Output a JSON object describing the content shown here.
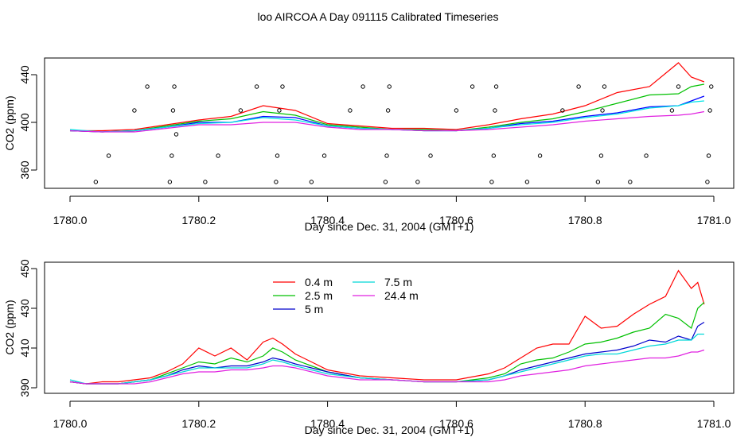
{
  "figure_title": "loo AIRCOA A  Day 091115  Calibrated Timeseries",
  "chart_data": [
    {
      "type": "line",
      "title": "",
      "xlabel": "Day since Dec. 31, 2004 (GMT+1)",
      "ylabel": "CO2 (ppm)",
      "xlim": [
        1780.0,
        1781.0
      ],
      "ylim": [
        350,
        450
      ],
      "x_ticks": [
        1780.0,
        1780.2,
        1780.4,
        1780.6,
        1780.8,
        1781.0
      ],
      "x_tick_labels": [
        "1780.0",
        "1780.2",
        "1780.4",
        "1780.6",
        "1780.8",
        "1781.0"
      ],
      "y_ticks": [
        360,
        400,
        440
      ],
      "y_tick_labels": [
        "360",
        "400",
        "440"
      ],
      "grid": false,
      "legend": false,
      "series": [
        {
          "color": "#ff0000",
          "x": [
            1780.0,
            1780.05,
            1780.1,
            1780.15,
            1780.2,
            1780.25,
            1780.3,
            1780.35,
            1780.4,
            1780.45,
            1780.5,
            1780.55,
            1780.6,
            1780.65,
            1780.7,
            1780.75,
            1780.8,
            1780.85,
            1780.9,
            1780.945,
            1780.965,
            1780.985
          ],
          "values": [
            393,
            393,
            394,
            398,
            402,
            405,
            414,
            410,
            399,
            397,
            395,
            395,
            394,
            398,
            403,
            407,
            414,
            425,
            430,
            450,
            438,
            434
          ]
        },
        {
          "color": "#00c000",
          "x": [
            1780.0,
            1780.05,
            1780.1,
            1780.15,
            1780.2,
            1780.25,
            1780.3,
            1780.35,
            1780.4,
            1780.45,
            1780.5,
            1780.55,
            1780.6,
            1780.65,
            1780.7,
            1780.75,
            1780.8,
            1780.85,
            1780.9,
            1780.945,
            1780.965,
            1780.985
          ],
          "values": [
            393,
            392,
            393,
            397,
            401,
            403,
            409,
            406,
            398,
            396,
            394,
            394,
            393,
            396,
            400,
            403,
            409,
            416,
            423,
            424,
            430,
            432
          ]
        },
        {
          "color": "#0000ff",
          "x": [
            1780.0,
            1780.05,
            1780.1,
            1780.15,
            1780.2,
            1780.25,
            1780.3,
            1780.35,
            1780.4,
            1780.45,
            1780.5,
            1780.55,
            1780.6,
            1780.65,
            1780.7,
            1780.75,
            1780.8,
            1780.85,
            1780.9,
            1780.945,
            1780.965,
            1780.985
          ],
          "values": [
            393,
            392,
            393,
            396,
            400,
            400,
            405,
            404,
            397,
            395,
            394,
            393,
            393,
            395,
            399,
            401,
            405,
            408,
            413,
            414,
            418,
            422
          ]
        },
        {
          "color": "#00e5e5",
          "x": [
            1780.0,
            1780.05,
            1780.1,
            1780.15,
            1780.2,
            1780.25,
            1780.3,
            1780.35,
            1780.4,
            1780.45,
            1780.5,
            1780.55,
            1780.6,
            1780.65,
            1780.7,
            1780.75,
            1780.8,
            1780.85,
            1780.9,
            1780.945,
            1780.965,
            1780.985
          ],
          "values": [
            394,
            392,
            393,
            396,
            399,
            400,
            404,
            402,
            397,
            395,
            394,
            393,
            393,
            395,
            398,
            400,
            404,
            407,
            412,
            414,
            417,
            418
          ]
        },
        {
          "color": "#e020e0",
          "x": [
            1780.0,
            1780.05,
            1780.1,
            1780.15,
            1780.2,
            1780.25,
            1780.3,
            1780.35,
            1780.4,
            1780.45,
            1780.5,
            1780.55,
            1780.6,
            1780.65,
            1780.7,
            1780.75,
            1780.8,
            1780.85,
            1780.9,
            1780.945,
            1780.965,
            1780.985
          ],
          "values": [
            393,
            392,
            392,
            395,
            398,
            398,
            400,
            400,
            396,
            394,
            394,
            393,
            393,
            394,
            396,
            398,
            401,
            403,
            405,
            406,
            407,
            409
          ]
        }
      ],
      "markers": {
        "x": [
          1780.04,
          1780.06,
          1780.1,
          1780.12,
          1780.155,
          1780.158,
          1780.16,
          1780.162,
          1780.165,
          1780.21,
          1780.23,
          1780.265,
          1780.29,
          1780.32,
          1780.322,
          1780.325,
          1780.33,
          1780.375,
          1780.395,
          1780.435,
          1780.455,
          1780.49,
          1780.492,
          1780.494,
          1780.496,
          1780.54,
          1780.56,
          1780.6,
          1780.625,
          1780.655,
          1780.658,
          1780.66,
          1780.662,
          1780.71,
          1780.73,
          1780.765,
          1780.79,
          1780.82,
          1780.825,
          1780.827,
          1780.83,
          1780.87,
          1780.895,
          1780.935,
          1780.945,
          1780.99,
          1780.992,
          1780.994,
          1780.996
        ],
        "values": [
          350,
          372,
          410,
          430,
          350,
          372,
          410,
          430,
          390,
          350,
          372,
          410,
          430,
          350,
          372,
          410,
          430,
          350,
          372,
          410,
          430,
          350,
          372,
          410,
          430,
          350,
          372,
          410,
          430,
          350,
          372,
          410,
          430,
          350,
          372,
          410,
          430,
          350,
          372,
          410,
          430,
          350,
          372,
          410,
          430,
          350,
          372,
          410,
          430
        ]
      }
    },
    {
      "type": "line",
      "title": "",
      "xlabel": "Day since Dec. 31, 2004 (GMT+1)",
      "ylabel": "CO2 (ppm)",
      "xlim": [
        1780.0,
        1781.0
      ],
      "ylim": [
        390,
        450
      ],
      "x_ticks": [
        1780.0,
        1780.2,
        1780.4,
        1780.6,
        1780.8,
        1781.0
      ],
      "x_tick_labels": [
        "1780.0",
        "1780.2",
        "1780.4",
        "1780.6",
        "1780.8",
        "1781.0"
      ],
      "y_ticks": [
        390,
        410,
        430,
        450
      ],
      "y_tick_labels": [
        "390",
        "410",
        "430",
        "450"
      ],
      "grid": false,
      "legend": "top-left",
      "series": [
        {
          "name": "0.4 m",
          "color": "#ff0000",
          "x": [
            1780.0,
            1780.025,
            1780.05,
            1780.075,
            1780.1,
            1780.125,
            1780.15,
            1780.175,
            1780.2,
            1780.225,
            1780.25,
            1780.275,
            1780.3,
            1780.315,
            1780.33,
            1780.35,
            1780.375,
            1780.4,
            1780.45,
            1780.5,
            1780.55,
            1780.6,
            1780.65,
            1780.675,
            1780.7,
            1780.725,
            1780.75,
            1780.775,
            1780.8,
            1780.825,
            1780.85,
            1780.875,
            1780.9,
            1780.925,
            1780.945,
            1780.965,
            1780.975,
            1780.985
          ],
          "values": [
            393,
            392,
            393,
            393,
            394,
            395,
            398,
            402,
            410,
            406,
            410,
            404,
            413,
            415,
            412,
            407,
            403,
            399,
            396,
            395,
            394,
            394,
            397,
            400,
            405,
            410,
            412,
            412,
            426,
            420,
            421,
            427,
            432,
            436,
            449,
            440,
            443,
            432
          ]
        },
        {
          "name": "2.5 m",
          "color": "#00c000",
          "x": [
            1780.0,
            1780.025,
            1780.05,
            1780.075,
            1780.1,
            1780.125,
            1780.15,
            1780.175,
            1780.2,
            1780.225,
            1780.25,
            1780.275,
            1780.3,
            1780.315,
            1780.33,
            1780.35,
            1780.375,
            1780.4,
            1780.45,
            1780.5,
            1780.55,
            1780.6,
            1780.65,
            1780.675,
            1780.7,
            1780.725,
            1780.75,
            1780.775,
            1780.8,
            1780.825,
            1780.85,
            1780.875,
            1780.9,
            1780.925,
            1780.945,
            1780.965,
            1780.975,
            1780.985
          ],
          "values": [
            393,
            392,
            392,
            392,
            393,
            394,
            397,
            400,
            403,
            402,
            405,
            403,
            406,
            410,
            408,
            404,
            401,
            398,
            395,
            394,
            393,
            393,
            395,
            397,
            402,
            404,
            405,
            408,
            412,
            413,
            415,
            418,
            420,
            427,
            425,
            420,
            430,
            433
          ]
        },
        {
          "name": "5 m",
          "color": "#0000cc",
          "x": [
            1780.0,
            1780.025,
            1780.05,
            1780.075,
            1780.1,
            1780.125,
            1780.15,
            1780.175,
            1780.2,
            1780.225,
            1780.25,
            1780.275,
            1780.3,
            1780.315,
            1780.33,
            1780.35,
            1780.375,
            1780.4,
            1780.45,
            1780.5,
            1780.55,
            1780.6,
            1780.65,
            1780.675,
            1780.7,
            1780.725,
            1780.75,
            1780.775,
            1780.8,
            1780.825,
            1780.85,
            1780.875,
            1780.9,
            1780.925,
            1780.945,
            1780.965,
            1780.975,
            1780.985
          ],
          "values": [
            393,
            392,
            392,
            392,
            393,
            394,
            396,
            399,
            401,
            400,
            401,
            401,
            403,
            405,
            404,
            402,
            400,
            398,
            395,
            394,
            393,
            393,
            394,
            396,
            399,
            401,
            403,
            405,
            407,
            408,
            409,
            411,
            414,
            413,
            416,
            414,
            421,
            423
          ]
        },
        {
          "name": "7.5 m",
          "color": "#00d8d8",
          "x": [
            1780.0,
            1780.025,
            1780.05,
            1780.075,
            1780.1,
            1780.125,
            1780.15,
            1780.175,
            1780.2,
            1780.225,
            1780.25,
            1780.275,
            1780.3,
            1780.315,
            1780.33,
            1780.35,
            1780.375,
            1780.4,
            1780.45,
            1780.5,
            1780.55,
            1780.6,
            1780.65,
            1780.675,
            1780.7,
            1780.725,
            1780.75,
            1780.775,
            1780.8,
            1780.825,
            1780.85,
            1780.875,
            1780.9,
            1780.925,
            1780.945,
            1780.965,
            1780.975,
            1780.985
          ],
          "values": [
            394,
            392,
            392,
            392,
            393,
            394,
            396,
            398,
            400,
            400,
            400,
            400,
            402,
            404,
            403,
            401,
            399,
            397,
            395,
            394,
            393,
            393,
            394,
            396,
            398,
            400,
            402,
            404,
            406,
            407,
            407,
            409,
            411,
            412,
            414,
            414,
            417,
            417
          ]
        },
        {
          "name": "24.4 m",
          "color": "#e020e0",
          "x": [
            1780.0,
            1780.025,
            1780.05,
            1780.075,
            1780.1,
            1780.125,
            1780.15,
            1780.175,
            1780.2,
            1780.225,
            1780.25,
            1780.275,
            1780.3,
            1780.315,
            1780.33,
            1780.35,
            1780.375,
            1780.4,
            1780.45,
            1780.5,
            1780.55,
            1780.6,
            1780.65,
            1780.675,
            1780.7,
            1780.725,
            1780.75,
            1780.775,
            1780.8,
            1780.825,
            1780.85,
            1780.875,
            1780.9,
            1780.925,
            1780.945,
            1780.965,
            1780.975,
            1780.985
          ],
          "values": [
            393,
            392,
            392,
            392,
            392,
            393,
            395,
            397,
            398,
            398,
            399,
            399,
            400,
            401,
            401,
            400,
            398,
            396,
            394,
            394,
            393,
            393,
            393,
            394,
            396,
            397,
            398,
            399,
            401,
            402,
            403,
            404,
            405,
            405,
            406,
            408,
            408,
            409
          ]
        }
      ]
    }
  ]
}
